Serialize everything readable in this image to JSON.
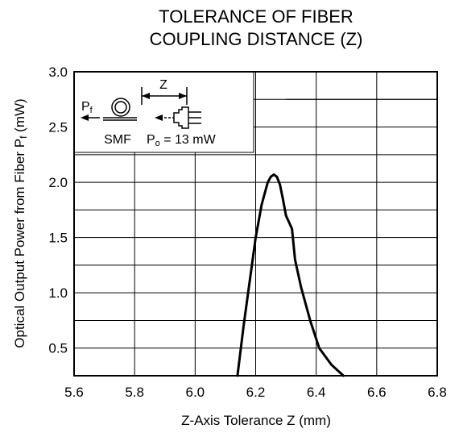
{
  "chart_data": {
    "type": "line",
    "title_lines": [
      "TOLERANCE OF FIBER",
      "COUPLING DISTANCE (Z)"
    ],
    "xlabel": "Z-Axis Tolerance  Z (mm)",
    "ylabel": {
      "main": "Optical Output Power from Fiber  P",
      "sub": "f",
      "unit": " (mW)"
    },
    "xlim": [
      5.6,
      6.8
    ],
    "ylim": [
      0.25,
      3.0
    ],
    "x_ticks": [
      "5.6",
      "5.8",
      "6.0",
      "6.2",
      "6.4",
      "6.6",
      "6.8"
    ],
    "y_ticks": [
      "0.5",
      "1.0",
      "1.5",
      "2.0",
      "2.5",
      "3.0"
    ],
    "grid": true,
    "series": [
      {
        "x": [
          6.14,
          6.16,
          6.18,
          6.2,
          6.22,
          6.24,
          6.25,
          6.26,
          6.27,
          6.28,
          6.29,
          6.3,
          6.32,
          6.33,
          6.35,
          6.38,
          6.41,
          6.45,
          6.49
        ],
        "y": [
          0.25,
          0.7,
          1.1,
          1.5,
          1.8,
          2.0,
          2.05,
          2.07,
          2.05,
          1.98,
          1.85,
          1.7,
          1.58,
          1.3,
          1.05,
          0.75,
          0.5,
          0.35,
          0.25
        ]
      }
    ],
    "inset": {
      "z_label": "Z",
      "pf_label": "P",
      "pf_sub": "f",
      "smf_label": "SMF",
      "po_label": "P",
      "po_sub": "o",
      "po_value": " = 13 mW"
    }
  }
}
